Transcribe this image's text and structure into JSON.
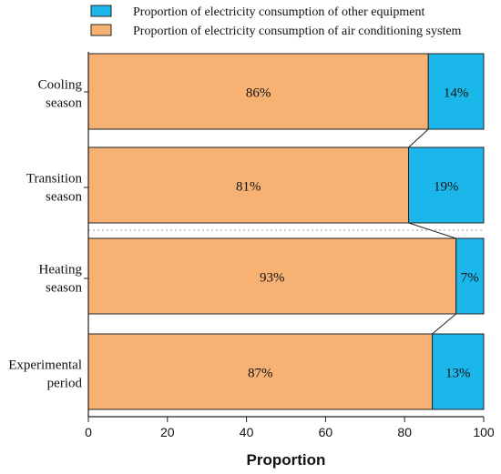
{
  "chart_data": {
    "type": "bar",
    "orientation": "horizontal",
    "stacked": true,
    "categories": [
      [
        "Cooling",
        "season"
      ],
      [
        "Transition",
        "season"
      ],
      [
        "Heating",
        "season"
      ],
      [
        "Experimental",
        "period"
      ]
    ],
    "series": [
      {
        "name": "Proportion of electricity consumption of air conditioning system",
        "color": "#f7b173",
        "values": [
          86,
          81,
          93,
          87
        ],
        "labels": [
          "86%",
          "81%",
          "93%",
          "87%"
        ]
      },
      {
        "name": "Proportion of electricity consumption of other equipment",
        "color": "#1cb7ea",
        "values": [
          14,
          19,
          7,
          13
        ],
        "labels": [
          "14%",
          "19%",
          "7%",
          "13%"
        ]
      }
    ],
    "xlabel": "Proportion",
    "ylabel": "",
    "xlim": [
      0,
      100
    ],
    "xticks": [
      "0",
      "20",
      "40",
      "60",
      "80",
      "100"
    ],
    "legend_position": "top",
    "grid": false
  }
}
